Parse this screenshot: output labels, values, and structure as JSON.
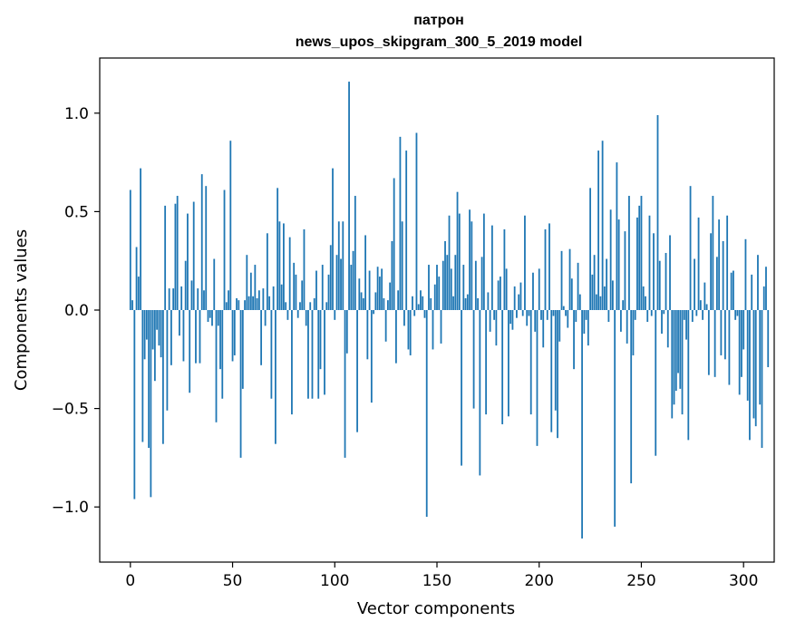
{
  "chart_data": {
    "type": "bar",
    "title": "патрон",
    "subtitle": "news_upos_skipgram_300_5_2019 model",
    "xlabel": "Vector components",
    "ylabel": "Components values",
    "xlim": [
      -15,
      315
    ],
    "ylim": [
      -1.28,
      1.28
    ],
    "xticks": [
      {
        "value": 0,
        "label": "0"
      },
      {
        "value": 50,
        "label": "50"
      },
      {
        "value": 100,
        "label": "100"
      },
      {
        "value": 150,
        "label": "150"
      },
      {
        "value": 200,
        "label": "200"
      },
      {
        "value": 250,
        "label": "250"
      },
      {
        "value": 300,
        "label": "300"
      }
    ],
    "yticks": [
      {
        "value": -1.0,
        "label": "−1.0"
      },
      {
        "value": -0.5,
        "label": "−0.5"
      },
      {
        "value": 0.0,
        "label": "0.0"
      },
      {
        "value": 0.5,
        "label": "0.5"
      },
      {
        "value": 1.0,
        "label": "1.0"
      }
    ],
    "grid": false,
    "bar_color": "#1f77b4",
    "values": [
      0.61,
      0.05,
      -0.96,
      0.32,
      0.17,
      0.72,
      -0.67,
      -0.25,
      -0.15,
      -0.7,
      -0.95,
      -0.2,
      -0.36,
      -0.1,
      -0.18,
      -0.24,
      -0.68,
      0.53,
      -0.51,
      0.11,
      -0.28,
      0.11,
      0.54,
      0.58,
      -0.13,
      0.12,
      -0.26,
      0.25,
      0.49,
      -0.42,
      0.15,
      0.55,
      -0.27,
      0.11,
      -0.27,
      0.69,
      0.1,
      0.63,
      -0.06,
      -0.04,
      -0.08,
      0.26,
      -0.57,
      -0.08,
      -0.3,
      -0.45,
      0.61,
      0.04,
      0.1,
      0.86,
      -0.26,
      -0.23,
      0.06,
      0.05,
      -0.75,
      -0.4,
      0.05,
      0.28,
      0.07,
      0.19,
      0.07,
      0.23,
      0.06,
      0.1,
      -0.28,
      0.11,
      -0.08,
      0.39,
      0.07,
      -0.45,
      0.12,
      -0.68,
      0.62,
      0.45,
      0.13,
      0.44,
      0.04,
      -0.05,
      0.37,
      -0.53,
      0.24,
      0.18,
      -0.04,
      0.04,
      0.15,
      0.41,
      -0.08,
      -0.45,
      0.04,
      -0.45,
      0.06,
      0.2,
      -0.45,
      -0.3,
      0.23,
      -0.43,
      0.04,
      0.18,
      0.33,
      0.72,
      -0.05,
      0.28,
      0.45,
      0.26,
      0.45,
      -0.75,
      -0.22,
      1.16,
      0.23,
      0.3,
      0.58,
      -0.62,
      0.16,
      0.09,
      0.06,
      0.38,
      -0.25,
      0.2,
      -0.47,
      -0.02,
      0.09,
      0.22,
      0.17,
      0.21,
      0.06,
      -0.16,
      0.05,
      0.14,
      0.35,
      0.67,
      -0.27,
      0.1,
      0.88,
      0.45,
      -0.08,
      0.81,
      -0.2,
      -0.23,
      0.07,
      -0.03,
      0.9,
      0.03,
      0.1,
      0.07,
      -0.04,
      -1.05,
      0.23,
      0.06,
      -0.2,
      0.13,
      0.23,
      0.17,
      -0.17,
      0.25,
      0.35,
      0.28,
      0.48,
      0.21,
      0.07,
      0.28,
      0.6,
      0.49,
      -0.79,
      0.23,
      0.06,
      0.08,
      0.51,
      0.45,
      -0.5,
      0.25,
      0.06,
      -0.84,
      0.27,
      0.49,
      -0.53,
      0.09,
      -0.11,
      0.43,
      -0.05,
      -0.18,
      0.15,
      0.17,
      -0.58,
      0.41,
      0.21,
      -0.54,
      -0.07,
      -0.1,
      0.12,
      -0.04,
      0.08,
      0.14,
      -0.03,
      0.48,
      -0.08,
      -0.03,
      -0.53,
      0.19,
      -0.11,
      -0.69,
      0.21,
      -0.05,
      -0.19,
      0.41,
      -0.05,
      0.44,
      -0.62,
      -0.03,
      -0.51,
      -0.65,
      -0.16,
      0.3,
      0.02,
      -0.03,
      -0.09,
      0.31,
      0.16,
      -0.3,
      -0.06,
      0.24,
      0.08,
      -1.16,
      -0.12,
      -0.05,
      -0.18,
      0.62,
      0.18,
      0.28,
      0.08,
      0.81,
      0.07,
      0.86,
      0.12,
      0.26,
      -0.06,
      0.51,
      0.15,
      -1.1,
      0.75,
      0.46,
      -0.11,
      0.05,
      0.4,
      -0.17,
      0.58,
      -0.88,
      -0.23,
      -0.05,
      0.47,
      0.53,
      0.58,
      0.12,
      0.07,
      -0.06,
      0.48,
      -0.03,
      0.39,
      -0.74,
      0.99,
      0.25,
      -0.12,
      -0.02,
      0.29,
      -0.19,
      0.38,
      -0.55,
      -0.48,
      -0.41,
      -0.32,
      -0.4,
      -0.53,
      -0.05,
      -0.15,
      -0.66,
      0.63,
      -0.06,
      0.26,
      -0.03,
      0.47,
      0.05,
      -0.05,
      0.14,
      0.03,
      -0.33,
      0.39,
      0.58,
      -0.34,
      0.27,
      0.46,
      -0.23,
      0.35,
      -0.25,
      0.48,
      -0.38,
      0.19,
      0.2,
      -0.05,
      -0.03,
      -0.43,
      -0.34,
      -0.2,
      0.36,
      -0.46,
      -0.66,
      0.18,
      -0.55,
      -0.59,
      0.28,
      -0.48,
      -0.7,
      0.12,
      0.22,
      -0.29
    ]
  }
}
